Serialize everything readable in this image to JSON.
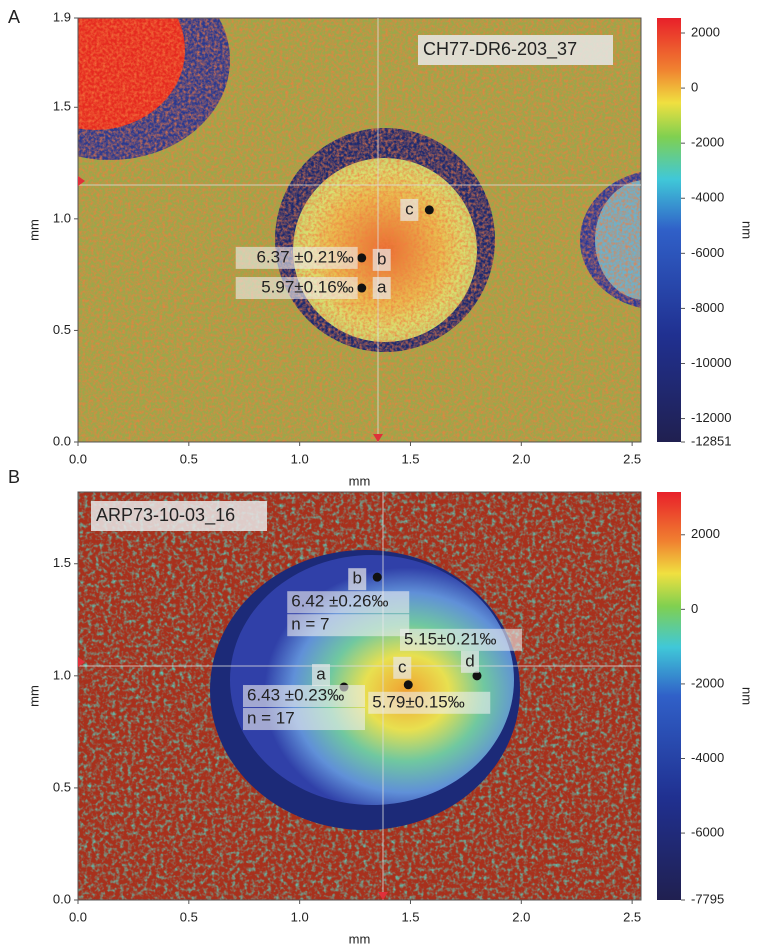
{
  "chart_data": [
    {
      "type": "heatmap",
      "panel_label": "A",
      "sample_label": "CH77-DR6-203_37",
      "x_label": "mm",
      "y_label": "mm",
      "xlim": [
        0,
        2.54
      ],
      "ylim": [
        0,
        1.9
      ],
      "xticks": [
        {
          "value": 0,
          "label": "0.0"
        },
        0.5,
        {
          "value": 1,
          "label": "1.0"
        },
        1.5,
        {
          "value": 2,
          "label": "2.0"
        },
        2.5
      ],
      "yticks": [
        {
          "value": 0,
          "label": "0.0"
        },
        0.5,
        {
          "value": 1,
          "label": "1.0"
        },
        1.5,
        1.9
      ],
      "colorbar": {
        "label": "nm",
        "lim": [
          -12851,
          2545
        ],
        "ticks": [
          2000,
          0,
          -2000,
          -4000,
          -6000,
          -8000,
          -10000,
          -12000,
          -12851
        ]
      },
      "spots": [
        {
          "label": "c",
          "x": 1.585,
          "y": 1.04,
          "text": []
        },
        {
          "label": "b",
          "x": 1.28,
          "y": 0.825,
          "text": [
            "6.37 ±0.21‰"
          ]
        },
        {
          "label": "a",
          "x": 1.28,
          "y": 0.69,
          "text": [
            "5.97±0.16‰"
          ]
        }
      ]
    },
    {
      "type": "heatmap",
      "panel_label": "B",
      "sample_label": "ARP73-10-03_16",
      "x_label": "mm",
      "y_label": "mm",
      "xlim": [
        0,
        2.54
      ],
      "ylim": [
        0,
        1.82
      ],
      "xticks": [
        {
          "value": 0,
          "label": "0.0"
        },
        0.5,
        {
          "value": 1,
          "label": "1.0"
        },
        1.5,
        {
          "value": 2,
          "label": "2.0"
        },
        2.5
      ],
      "yticks": [
        {
          "value": 0,
          "label": "0.0"
        },
        0.5,
        {
          "value": 1,
          "label": "1.0"
        },
        1.5
      ],
      "colorbar": {
        "label": "nm",
        "lim": [
          -7795,
          3147
        ],
        "ticks": [
          2000,
          0,
          -2000,
          -4000,
          -6000,
          -7795
        ]
      },
      "spots": [
        {
          "label": "b",
          "x": 1.35,
          "y": 1.44,
          "text": [
            "6.42 ±0.26‰",
            "n = 7"
          ]
        },
        {
          "label": "a",
          "x": 1.2,
          "y": 0.95,
          "text": [
            "6.43 ±0.23‰",
            "n = 17"
          ]
        },
        {
          "label": "c",
          "x": 1.49,
          "y": 0.96,
          "text": [
            "5.79±0.15‰"
          ]
        },
        {
          "label": "d",
          "x": 1.8,
          "y": 1.0,
          "text": [
            "5.15±0.21‰"
          ]
        }
      ]
    }
  ]
}
